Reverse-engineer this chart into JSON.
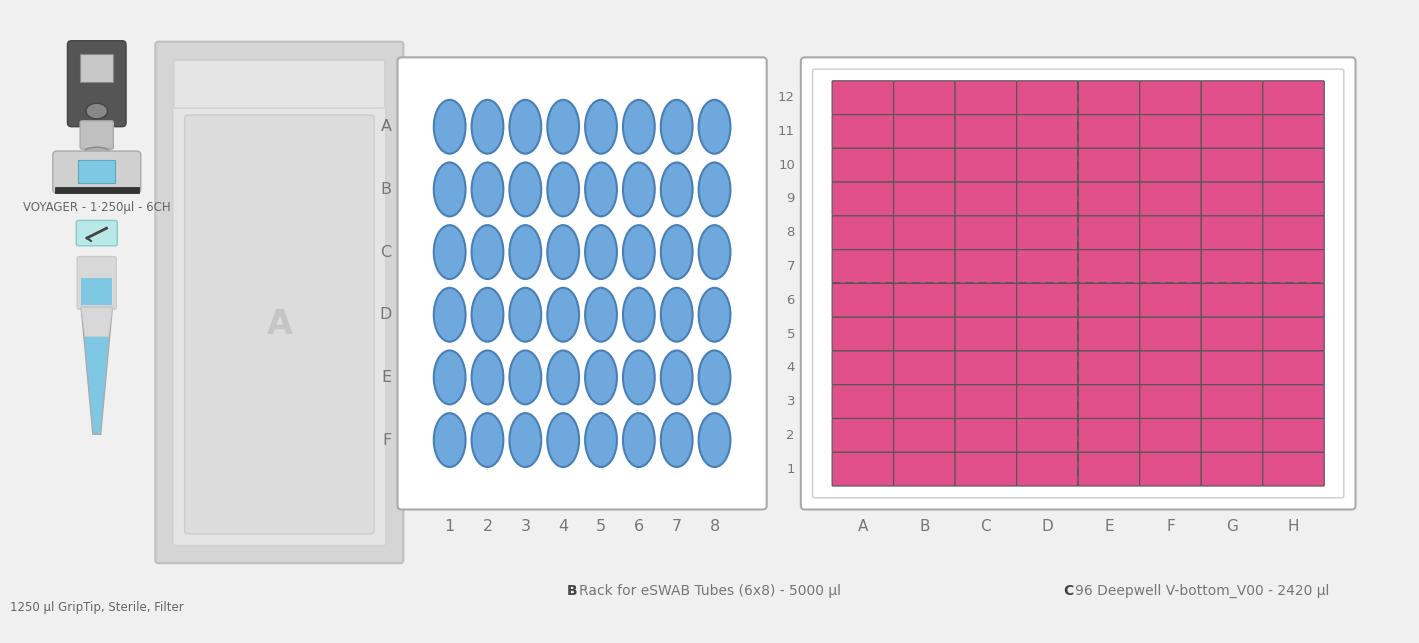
{
  "bg_color": "#f0f0f0",
  "circle_color": "#6fa8dc",
  "circle_edge": "#4a7fb5",
  "plate_color": "#e0508a",
  "plate_edge": "#333333",
  "plate_cell_edge": "#555555",
  "swab_rows": [
    "A",
    "B",
    "C",
    "D",
    "E",
    "F"
  ],
  "swab_cols": [
    1,
    2,
    3,
    4,
    5,
    6,
    7,
    8
  ],
  "plate_rows": [
    "A",
    "B",
    "C",
    "D",
    "E",
    "F",
    "G",
    "H"
  ],
  "plate_cols": [
    1,
    2,
    3,
    4,
    5,
    6,
    7,
    8,
    9,
    10,
    11,
    12
  ],
  "voyager_label": "VOYAGER - 1·250µl - 6CH",
  "tip_label": "1250 µl GripTip, Sterile, Filter",
  "rack_label_bold": "B",
  "rack_label_text": "Rack for eSWAB Tubes (6x8) - 5000 µl",
  "plate_label_bold": "C",
  "plate_label_text": "96 Deepwell V-bottom_V00 - 2420 µl",
  "deck_slot_label": "A",
  "label_color": "#777777",
  "label_bold_color": "#444444"
}
